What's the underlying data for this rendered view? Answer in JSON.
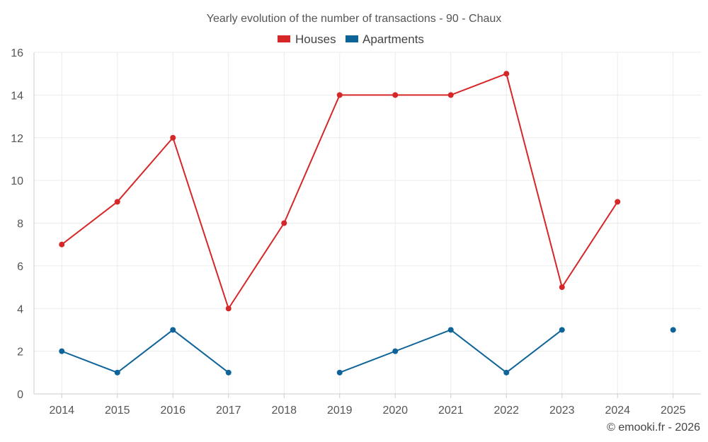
{
  "chart_data": {
    "type": "line",
    "title": "Yearly evolution of the number of transactions - 90 - Chaux",
    "x": [
      "2014",
      "2015",
      "2016",
      "2017",
      "2018",
      "2019",
      "2020",
      "2021",
      "2022",
      "2023",
      "2024",
      "2025"
    ],
    "ylim": [
      0,
      16
    ],
    "yticks": [
      0,
      2,
      4,
      6,
      8,
      10,
      12,
      14,
      16
    ],
    "grid": true,
    "legend_position": "top-center",
    "series": [
      {
        "name": "Houses",
        "color": "#d62728",
        "values": [
          7,
          9,
          12,
          4,
          8,
          14,
          14,
          14,
          15,
          5,
          9,
          null
        ]
      },
      {
        "name": "Apartments",
        "color": "#0e6398",
        "values": [
          2,
          1,
          3,
          1,
          null,
          1,
          2,
          3,
          1,
          3,
          null,
          3
        ]
      }
    ],
    "xlabel": "",
    "ylabel": ""
  },
  "credit": "© emooki.fr - 2026"
}
